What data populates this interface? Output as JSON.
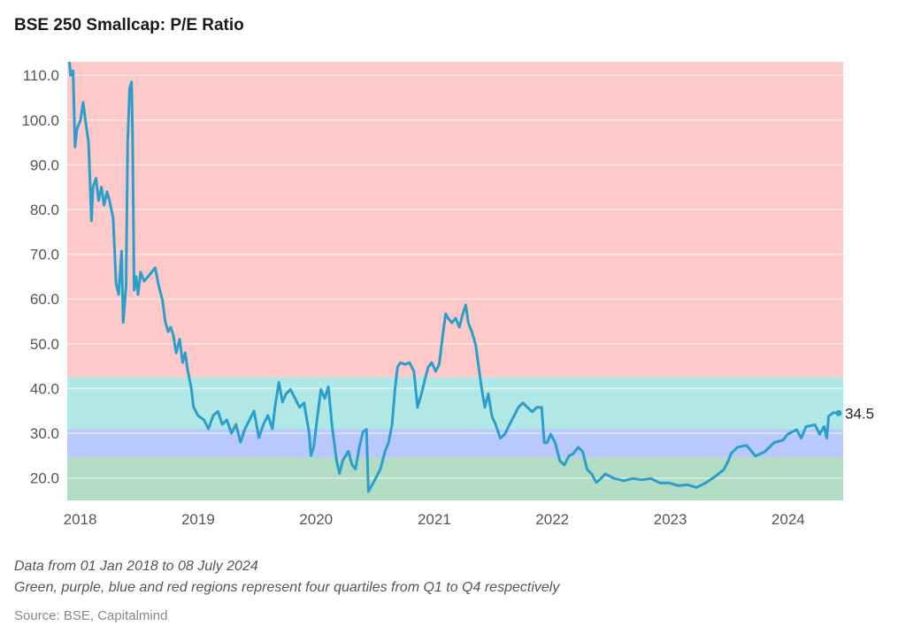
{
  "chart_data": {
    "type": "line",
    "title": "BSE 250 Smallcap: P/E Ratio",
    "xlabel": "",
    "ylabel": "",
    "ylim": [
      15,
      113
    ],
    "xlim": [
      "2017-12-25",
      "2024-07-22"
    ],
    "y_ticks": [
      "20.0",
      "30.0",
      "40.0",
      "50.0",
      "60.0",
      "70.0",
      "80.0",
      "90.0",
      "100.0",
      "110.0"
    ],
    "x_ticks": [
      "2018",
      "2019",
      "2020",
      "2021",
      "2022",
      "2023",
      "2024"
    ],
    "grid": true,
    "line_color": "#2a9fcc",
    "end_label": "34.5",
    "bands": [
      {
        "name": "Q1",
        "from": 15,
        "to": 24.6,
        "color": "#b3dcc5"
      },
      {
        "name": "Q2",
        "from": 24.6,
        "to": 30.9,
        "color": "#b9c9fb"
      },
      {
        "name": "Q3",
        "from": 30.9,
        "to": 42.6,
        "color": "#b1e8e6"
      },
      {
        "name": "Q4",
        "from": 42.6,
        "to": 113,
        "color": "#fdc9c9"
      }
    ],
    "series": [
      {
        "points": [
          [
            "2018-01-01",
            113
          ],
          [
            "2018-01-04",
            110
          ],
          [
            "2018-01-12",
            111
          ],
          [
            "2018-01-18",
            94
          ],
          [
            "2018-01-24",
            98
          ],
          [
            "2018-02-04",
            100
          ],
          [
            "2018-02-12",
            104
          ],
          [
            "2018-02-21",
            99
          ],
          [
            "2018-03-01",
            95
          ],
          [
            "2018-03-10",
            77.5
          ],
          [
            "2018-03-15",
            85
          ],
          [
            "2018-03-24",
            87
          ],
          [
            "2018-04-01",
            82
          ],
          [
            "2018-04-10",
            85
          ],
          [
            "2018-04-18",
            81
          ],
          [
            "2018-04-27",
            84
          ],
          [
            "2018-05-05",
            82
          ],
          [
            "2018-05-16",
            78
          ],
          [
            "2018-05-25",
            63.5
          ],
          [
            "2018-06-02",
            61
          ],
          [
            "2018-06-11",
            70.7
          ],
          [
            "2018-06-16",
            54.8
          ],
          [
            "2018-06-25",
            63
          ],
          [
            "2018-06-30",
            95
          ],
          [
            "2018-07-06",
            107
          ],
          [
            "2018-07-12",
            108.5
          ],
          [
            "2018-07-15",
            97
          ],
          [
            "2018-07-20",
            62
          ],
          [
            "2018-07-26",
            65
          ],
          [
            "2018-08-01",
            61
          ],
          [
            "2018-08-09",
            66
          ],
          [
            "2018-08-20",
            64
          ],
          [
            "2018-09-01",
            65
          ],
          [
            "2018-09-12",
            66
          ],
          [
            "2018-09-23",
            67
          ],
          [
            "2018-10-04",
            63
          ],
          [
            "2018-10-16",
            59.6
          ],
          [
            "2018-10-24",
            55
          ],
          [
            "2018-11-02",
            52.7
          ],
          [
            "2018-11-10",
            53.7
          ],
          [
            "2018-11-18",
            52
          ],
          [
            "2018-11-27",
            48
          ],
          [
            "2018-12-08",
            51
          ],
          [
            "2018-12-17",
            45.8
          ],
          [
            "2018-12-25",
            48
          ],
          [
            "2019-01-02",
            44
          ],
          [
            "2019-01-13",
            40
          ],
          [
            "2019-01-19",
            36
          ],
          [
            "2019-02-02",
            34
          ],
          [
            "2019-02-21",
            33
          ],
          [
            "2019-03-07",
            31
          ],
          [
            "2019-03-22",
            34
          ],
          [
            "2019-04-05",
            34.9
          ],
          [
            "2019-04-19",
            32
          ],
          [
            "2019-05-03",
            33
          ],
          [
            "2019-05-17",
            30
          ],
          [
            "2019-05-31",
            32
          ],
          [
            "2019-06-14",
            28
          ],
          [
            "2019-06-28",
            31
          ],
          [
            "2019-07-12",
            33
          ],
          [
            "2019-07-26",
            35
          ],
          [
            "2019-08-10",
            29
          ],
          [
            "2019-08-24",
            32
          ],
          [
            "2019-09-07",
            34
          ],
          [
            "2019-09-21",
            31
          ],
          [
            "2019-09-29",
            36
          ],
          [
            "2019-10-11",
            41.4
          ],
          [
            "2019-10-22",
            37
          ],
          [
            "2019-11-02",
            38.8
          ],
          [
            "2019-11-16",
            39.8
          ],
          [
            "2019-11-30",
            37.8
          ],
          [
            "2019-12-14",
            35.8
          ],
          [
            "2019-12-28",
            36.8
          ],
          [
            "2020-01-13",
            29.8
          ],
          [
            "2020-01-18",
            25
          ],
          [
            "2020-01-27",
            27
          ],
          [
            "2020-02-04",
            31.9
          ],
          [
            "2020-02-18",
            39.8
          ],
          [
            "2020-03-01",
            37.8
          ],
          [
            "2020-03-12",
            40.4
          ],
          [
            "2020-03-23",
            31.9
          ],
          [
            "2020-04-06",
            24
          ],
          [
            "2020-04-15",
            21
          ],
          [
            "2020-04-26",
            24
          ],
          [
            "2020-05-13",
            26
          ],
          [
            "2020-05-24",
            23
          ],
          [
            "2020-06-04",
            22
          ],
          [
            "2020-06-16",
            27
          ],
          [
            "2020-06-27",
            30.3
          ],
          [
            "2020-07-08",
            30.9
          ],
          [
            "2020-07-14",
            17
          ],
          [
            "2020-07-22",
            18
          ],
          [
            "2020-08-06",
            20
          ],
          [
            "2020-08-20",
            22
          ],
          [
            "2020-09-03",
            25.9
          ],
          [
            "2020-09-14",
            27.9
          ],
          [
            "2020-09-25",
            31.9
          ],
          [
            "2020-10-04",
            39.8
          ],
          [
            "2020-10-12",
            44.8
          ],
          [
            "2020-10-21",
            45.8
          ],
          [
            "2020-11-04",
            45.4
          ],
          [
            "2020-11-18",
            45.8
          ],
          [
            "2020-12-02",
            43.8
          ],
          [
            "2020-12-13",
            35.8
          ],
          [
            "2020-12-25",
            38.8
          ],
          [
            "2021-01-04",
            41.8
          ],
          [
            "2021-01-15",
            44.8
          ],
          [
            "2021-01-26",
            45.8
          ],
          [
            "2021-02-07",
            43.8
          ],
          [
            "2021-02-18",
            45.4
          ],
          [
            "2021-03-01",
            51.9
          ],
          [
            "2021-03-10",
            56.7
          ],
          [
            "2021-03-18",
            55.7
          ],
          [
            "2021-03-29",
            54.7
          ],
          [
            "2021-04-10",
            55.7
          ],
          [
            "2021-04-21",
            53.7
          ],
          [
            "2021-05-02",
            56.7
          ],
          [
            "2021-05-11",
            58.7
          ],
          [
            "2021-05-19",
            54.7
          ],
          [
            "2021-05-30",
            52.7
          ],
          [
            "2021-06-11",
            49.7
          ],
          [
            "2021-06-22",
            43.8
          ],
          [
            "2021-06-30",
            39.8
          ],
          [
            "2021-07-09",
            35.8
          ],
          [
            "2021-07-20",
            38.8
          ],
          [
            "2021-07-31",
            33.8
          ],
          [
            "2021-08-12",
            31.9
          ],
          [
            "2021-08-26",
            28.9
          ],
          [
            "2021-09-09",
            29.8
          ],
          [
            "2021-09-23",
            31.9
          ],
          [
            "2021-10-07",
            33.8
          ],
          [
            "2021-10-21",
            35.8
          ],
          [
            "2021-11-04",
            36.8
          ],
          [
            "2021-11-18",
            35.8
          ],
          [
            "2021-12-03",
            34.8
          ],
          [
            "2021-12-17",
            35.8
          ],
          [
            "2022-01-01",
            35.8
          ],
          [
            "2022-01-09",
            27.9
          ],
          [
            "2022-01-18",
            27.9
          ],
          [
            "2022-01-29",
            29.8
          ],
          [
            "2022-02-12",
            27.9
          ],
          [
            "2022-02-26",
            23.9
          ],
          [
            "2022-03-12",
            22.9
          ],
          [
            "2022-03-26",
            24.9
          ],
          [
            "2022-04-09",
            25.5
          ],
          [
            "2022-04-24",
            26.9
          ],
          [
            "2022-05-08",
            25.9
          ],
          [
            "2022-05-22",
            21.9
          ],
          [
            "2022-06-05",
            20.9
          ],
          [
            "2022-06-19",
            19
          ],
          [
            "2022-07-03",
            19.9
          ],
          [
            "2022-07-17",
            20.9
          ],
          [
            "2022-08-14",
            19.9
          ],
          [
            "2022-09-12",
            19.4
          ],
          [
            "2022-10-10",
            19.9
          ],
          [
            "2022-11-07",
            19.6
          ],
          [
            "2022-12-05",
            19.9
          ],
          [
            "2023-01-02",
            18.9
          ],
          [
            "2023-01-31",
            18.9
          ],
          [
            "2023-02-28",
            18.3
          ],
          [
            "2023-03-28",
            18.5
          ],
          [
            "2023-04-25",
            17.9
          ],
          [
            "2023-05-23",
            18.9
          ],
          [
            "2023-06-21",
            20.3
          ],
          [
            "2023-07-19",
            21.9
          ],
          [
            "2023-08-02",
            23.9
          ],
          [
            "2023-08-10",
            25.5
          ],
          [
            "2023-08-30",
            26.9
          ],
          [
            "2023-09-27",
            27.3
          ],
          [
            "2023-10-25",
            24.9
          ],
          [
            "2023-11-23",
            25.9
          ],
          [
            "2023-12-21",
            27.9
          ],
          [
            "2024-01-18",
            28.5
          ],
          [
            "2024-02-01",
            29.8
          ],
          [
            "2024-02-29",
            30.8
          ],
          [
            "2024-03-14",
            28.9
          ],
          [
            "2024-03-29",
            31.5
          ],
          [
            "2024-04-26",
            31.9
          ],
          [
            "2024-05-10",
            29.8
          ],
          [
            "2024-05-24",
            31.5
          ],
          [
            "2024-06-01",
            28.9
          ],
          [
            "2024-06-07",
            33.8
          ],
          [
            "2024-06-21",
            34.6
          ],
          [
            "2024-07-08",
            34.5
          ]
        ]
      }
    ]
  },
  "footer": {
    "note1": "Data from 01 Jan 2018 to 08 July 2024",
    "note2": "Green, purple, blue and red regions represent four quartiles from Q1 to Q4 respectively",
    "source": "Source: BSE, Capitalmind"
  }
}
